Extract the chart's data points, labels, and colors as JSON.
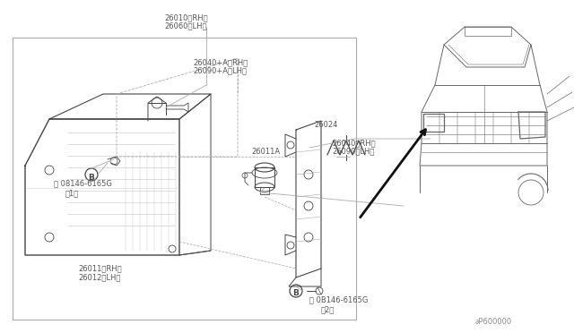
{
  "bg_color": "#ffffff",
  "lc": "#aaaaaa",
  "dc": "#444444",
  "tc": "#555555",
  "labels": {
    "26010_26060": [
      0.295,
      0.935,
      "26010〈RH〉\n26060〈LH〉"
    ],
    "26040A": [
      0.275,
      0.835,
      "26040+A〈RH〉\n26090+A〈LH〉"
    ],
    "26024": [
      0.49,
      0.87,
      "26024"
    ],
    "26011A": [
      0.435,
      0.79,
      "26011A"
    ],
    "B1": [
      0.055,
      0.76,
      "B 08146-6165G\n    、1（"
    ],
    "26040b": [
      0.57,
      0.62,
      "26040〈RH〉\n26090〈LH〉"
    ],
    "26011b": [
      0.085,
      0.215,
      "26011〈RH〉\n26012〈LH〉"
    ],
    "B2": [
      0.39,
      0.13,
      "B 0B146-6165G\n      （2）"
    ],
    "ref": [
      0.875,
      0.03,
      "∂P600000"
    ]
  }
}
